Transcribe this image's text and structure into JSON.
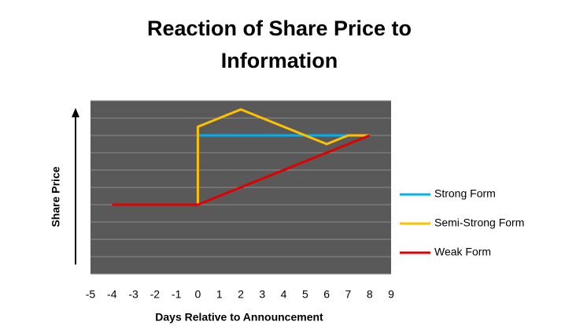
{
  "chart_data": {
    "type": "line",
    "title": [
      "Reaction of Share Price to",
      "Information"
    ],
    "x_label": "Days Relative to Announcement",
    "y_label": "Share Price",
    "xlim": [
      -5,
      9
    ],
    "xticks": [
      -5,
      -4,
      -3,
      -2,
      -1,
      0,
      1,
      2,
      3,
      4,
      5,
      6,
      7,
      8,
      9
    ],
    "ylim": [
      0,
      10
    ],
    "yticks": [
      0,
      1,
      2,
      3,
      4,
      5,
      6,
      7,
      8,
      9,
      10
    ],
    "grid": true,
    "legend": "right",
    "series": [
      {
        "name": "Strong Form",
        "color": "#00b0f0",
        "x": [
          0,
          8
        ],
        "values": [
          8,
          8
        ]
      },
      {
        "name": "Semi-Strong Form",
        "color": "#ffc000",
        "x": [
          -4,
          0,
          0,
          2,
          6,
          7,
          8
        ],
        "values": [
          4,
          4,
          8.5,
          9.5,
          7.5,
          8,
          8
        ]
      },
      {
        "name": "Weak Form",
        "color": "#e00000",
        "x": [
          -4,
          0,
          8
        ],
        "values": [
          4,
          4,
          8
        ]
      }
    ]
  }
}
